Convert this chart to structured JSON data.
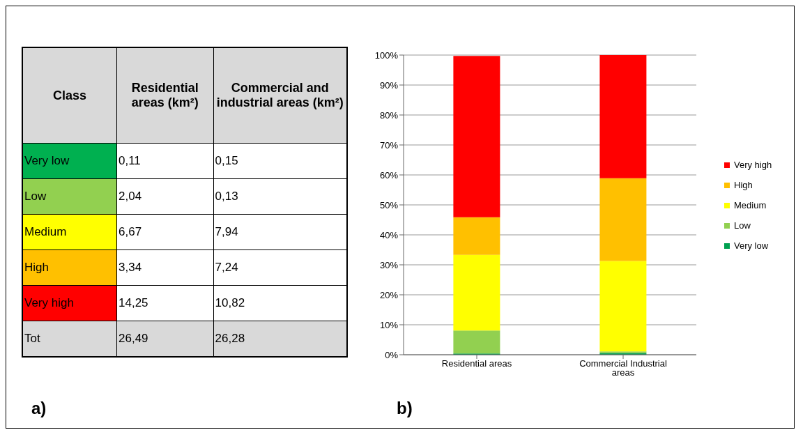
{
  "chart_data": [
    {
      "type": "other",
      "title": "a)",
      "xlabel": "Class",
      "categories": [
        "Very low",
        "Low",
        "Medium",
        "High",
        "Very high"
      ],
      "colors": [
        "#00b050",
        "#92d050",
        "#ffff00",
        "#ffc000",
        "#ff0000"
      ],
      "series": [
        {
          "name": "Residential areas (km²)",
          "values": [
            0.11,
            2.04,
            6.67,
            3.34,
            14.25
          ],
          "value_labels": [
            "0,11",
            "2,04",
            "6,67",
            "3,34",
            "14,25"
          ]
        },
        {
          "name": "Commercial and industrial areas (km²)",
          "values": [
            0.15,
            0.13,
            7.94,
            7.24,
            10.82
          ],
          "value_labels": [
            "0,15",
            "0,13",
            "7,94",
            "7,24",
            "10,82"
          ]
        }
      ],
      "annotations": [
        "Tot"
      ],
      "totals": [
        "26,49",
        "26,28"
      ]
    },
    {
      "type": "bar",
      "title": "b)",
      "stacked": true,
      "categories": [
        "Residential areas",
        "Commercial Industrial areas"
      ],
      "series": [
        {
          "name": "Very low",
          "color": "#00a050",
          "values": [
            0.4,
            0.6
          ]
        },
        {
          "name": "Low",
          "color": "#92d050",
          "values": [
            7.7,
            0.5
          ]
        },
        {
          "name": "Medium",
          "color": "#ffff00",
          "values": [
            25.2,
            30.2
          ]
        },
        {
          "name": "High",
          "color": "#ffc000",
          "values": [
            12.6,
            27.6
          ]
        },
        {
          "name": "Very high",
          "color": "#ff0000",
          "values": [
            53.8,
            41.2
          ]
        }
      ],
      "ylim": [
        0,
        100
      ],
      "yticks": [
        {
          "value": 0,
          "label": "0%"
        },
        {
          "value": 10,
          "label": "10%"
        },
        {
          "value": 20,
          "label": "20%"
        },
        {
          "value": 30,
          "label": "30%"
        },
        {
          "value": 40,
          "label": "40%"
        },
        {
          "value": 50,
          "label": "50%"
        },
        {
          "value": 60,
          "label": "60%"
        },
        {
          "value": 70,
          "label": "70%"
        },
        {
          "value": 80,
          "label": "80%"
        },
        {
          "value": 90,
          "label": "90%"
        },
        {
          "value": 100,
          "label": "100%"
        }
      ],
      "grid": "y",
      "legend": "right"
    }
  ]
}
